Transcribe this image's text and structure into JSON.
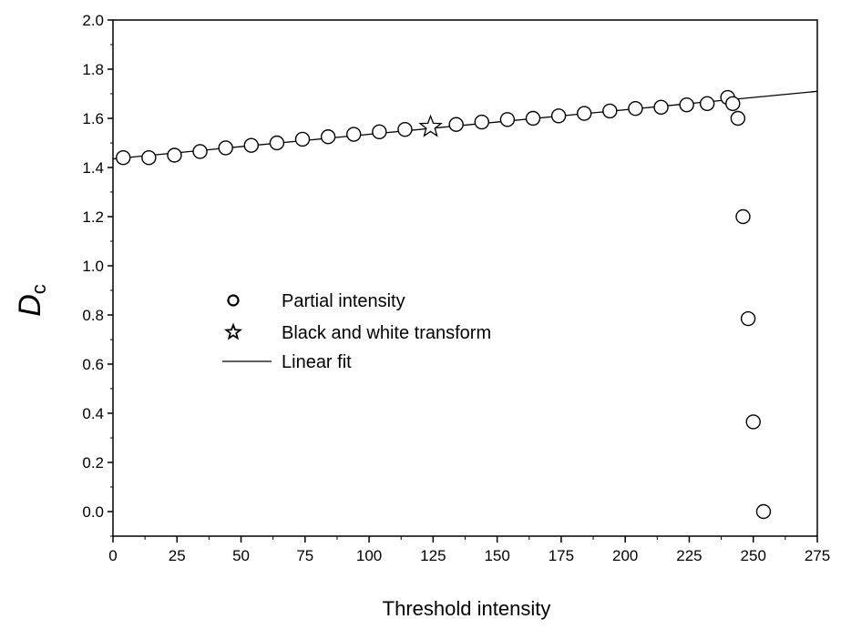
{
  "chart_data": {
    "type": "scatter",
    "title": "",
    "xlabel": "Threshold intensity",
    "ylabel": "D",
    "ylabel_subscript": "c",
    "xlim": [
      0,
      275
    ],
    "ylim": [
      -0.1,
      2.0
    ],
    "x_ticks": [
      "0",
      "25",
      "50",
      "75",
      "100",
      "125",
      "150",
      "175",
      "200",
      "225",
      "250",
      "275"
    ],
    "y_ticks": [
      "0.0",
      "0.2",
      "0.4",
      "0.6",
      "0.8",
      "1.0",
      "1.2",
      "1.4",
      "1.6",
      "1.8",
      "2.0"
    ],
    "grid": false,
    "legend_position": "center-left",
    "legend": [
      {
        "label": "Partial intensity",
        "marker": "circle"
      },
      {
        "label": "Black and white transform",
        "marker": "star"
      },
      {
        "label": "Linear fit",
        "marker": "line"
      }
    ],
    "series": [
      {
        "name": "Partial intensity",
        "marker": "circle",
        "points": [
          [
            4,
            1.44
          ],
          [
            14,
            1.44
          ],
          [
            24,
            1.45
          ],
          [
            34,
            1.465
          ],
          [
            44,
            1.48
          ],
          [
            54,
            1.49
          ],
          [
            64,
            1.5
          ],
          [
            74,
            1.515
          ],
          [
            84,
            1.525
          ],
          [
            94,
            1.535
          ],
          [
            104,
            1.545
          ],
          [
            114,
            1.555
          ],
          [
            134,
            1.575
          ],
          [
            144,
            1.585
          ],
          [
            154,
            1.595
          ],
          [
            164,
            1.6
          ],
          [
            174,
            1.61
          ],
          [
            184,
            1.62
          ],
          [
            194,
            1.63
          ],
          [
            204,
            1.64
          ],
          [
            214,
            1.645
          ],
          [
            224,
            1.655
          ],
          [
            232,
            1.66
          ],
          [
            240,
            1.685
          ],
          [
            242,
            1.66
          ],
          [
            244,
            1.6
          ],
          [
            246,
            1.2
          ],
          [
            248,
            0.785
          ],
          [
            250,
            0.365
          ],
          [
            254,
            0.0
          ]
        ]
      },
      {
        "name": "Black and white transform",
        "marker": "star",
        "points": [
          [
            124,
            1.565
          ]
        ]
      },
      {
        "name": "Linear fit",
        "marker": "line",
        "points": [
          [
            0,
            1.435
          ],
          [
            275,
            1.71
          ]
        ]
      }
    ]
  }
}
